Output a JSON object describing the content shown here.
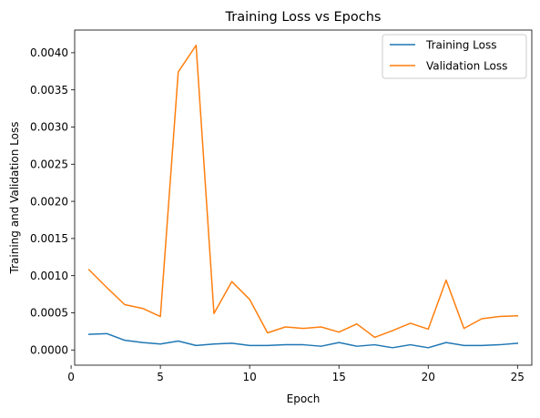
{
  "chart_data": {
    "type": "line",
    "title": "Training Loss vs Epochs",
    "xlabel": "Epoch",
    "ylabel": "Training and Validation Loss",
    "xlim": [
      0.2,
      25.8
    ],
    "ylim": [
      -0.000205,
      0.004305
    ],
    "xticks": [
      0,
      5,
      10,
      15,
      20,
      25
    ],
    "xtick_labels": [
      "0",
      "5",
      "10",
      "15",
      "20",
      "25"
    ],
    "yticks": [
      0.0,
      0.0005,
      0.001,
      0.0015,
      0.002,
      0.0025,
      0.003,
      0.0035,
      0.004
    ],
    "ytick_labels": [
      "0.0000",
      "0.0005",
      "0.0010",
      "0.0015",
      "0.0020",
      "0.0025",
      "0.0030",
      "0.0035",
      "0.0040"
    ],
    "grid": false,
    "legend_position": "top-right",
    "x": [
      1,
      2,
      3,
      4,
      5,
      6,
      7,
      8,
      9,
      10,
      11,
      12,
      13,
      14,
      15,
      16,
      17,
      18,
      19,
      20,
      21,
      22,
      23,
      24,
      25
    ],
    "series": [
      {
        "name": "Training Loss",
        "color": "#1f77b4",
        "values": [
          0.00021,
          0.00022,
          0.00013,
          0.0001,
          8e-05,
          0.00012,
          6e-05,
          8e-05,
          9e-05,
          6e-05,
          6e-05,
          7e-05,
          7e-05,
          5e-05,
          0.0001,
          5e-05,
          7e-05,
          3e-05,
          7e-05,
          3e-05,
          0.0001,
          6e-05,
          6e-05,
          7e-05,
          9e-05
        ]
      },
      {
        "name": "Validation Loss",
        "color": "#ff7f0e",
        "values": [
          0.00108,
          0.00084,
          0.00061,
          0.00056,
          0.00045,
          0.00374,
          0.0041,
          0.00049,
          0.00092,
          0.00068,
          0.00023,
          0.00031,
          0.00029,
          0.00031,
          0.00024,
          0.00035,
          0.00017,
          0.00026,
          0.00036,
          0.00028,
          0.00094,
          0.00029,
          0.00042,
          0.00045,
          0.00046
        ]
      }
    ]
  }
}
